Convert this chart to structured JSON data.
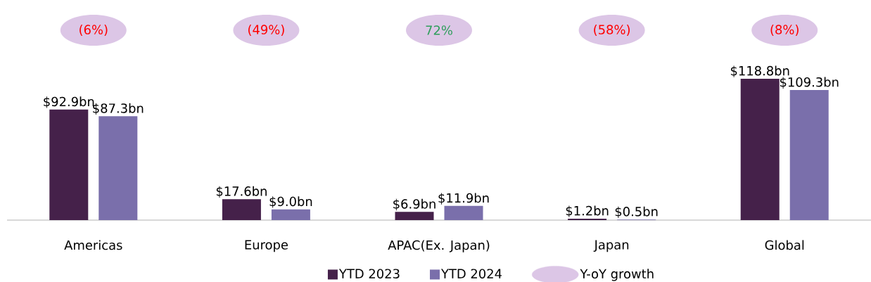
{
  "chart_data": {
    "type": "bar",
    "categories": [
      "Americas",
      "Europe",
      "APAC(Ex. Japan)",
      "Japan",
      "Global"
    ],
    "series": [
      {
        "name": "YTD 2023",
        "color": "#45214a",
        "values": [
          92.9,
          17.6,
          6.9,
          1.2,
          118.8
        ],
        "value_labels": [
          "$92.9bn",
          "$17.6bn",
          "$6.9bn",
          "$1.2bn",
          "$118.8bn"
        ]
      },
      {
        "name": "YTD 2024",
        "color": "#7a6fab",
        "values": [
          87.3,
          9.0,
          11.9,
          0.5,
          109.3
        ],
        "value_labels": [
          "$87.3bn",
          "$9.0bn",
          "$11.9bn",
          "$0.5bn",
          "$109.3bn"
        ]
      }
    ],
    "annotations": [
      "Y-oY growth",
      "(6%)",
      "(49%)",
      "72%",
      "(58%)",
      "(8%)"
    ],
    "legend": "bottom"
  }
}
